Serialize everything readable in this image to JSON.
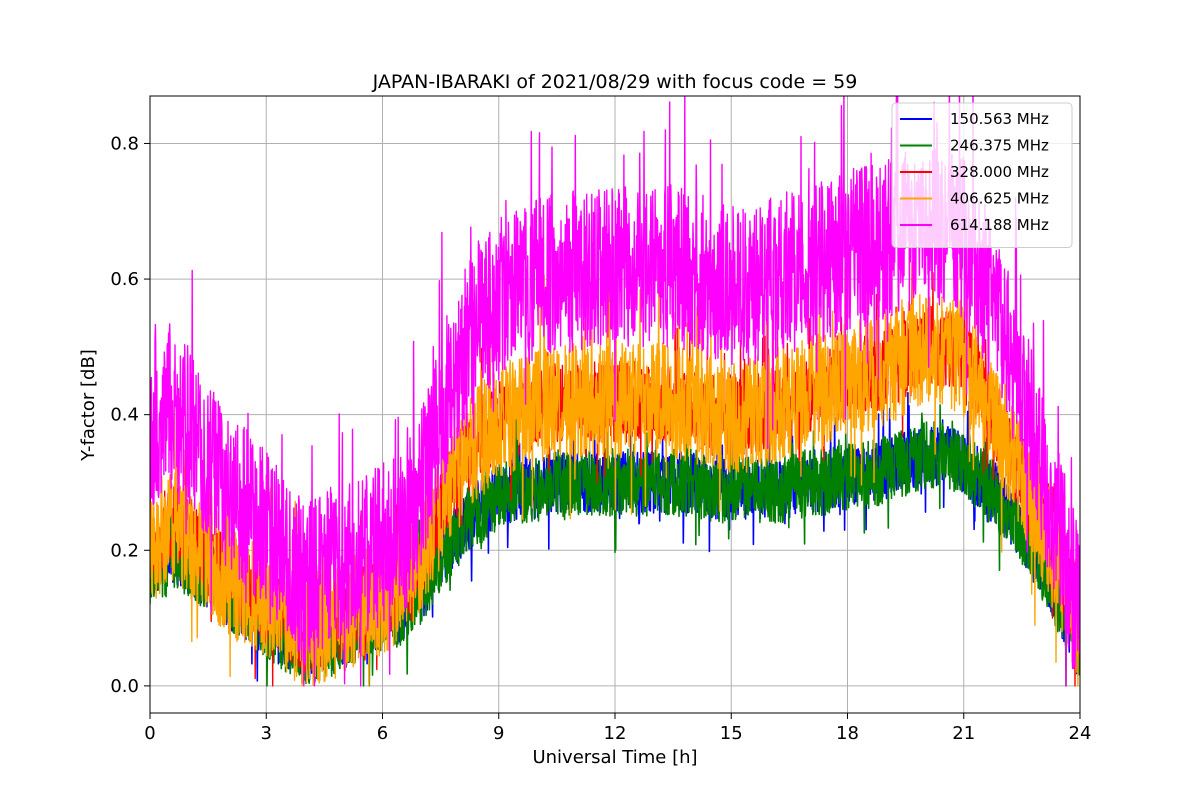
{
  "chart_data": {
    "type": "line",
    "title": "JAPAN-IBARAKI of 2021/08/29 with focus code = 59",
    "xlabel": "Universal Time [h]",
    "ylabel": "Y-factor [dB]",
    "xlim": [
      0,
      24
    ],
    "ylim": [
      -0.04,
      0.87
    ],
    "xticks": [
      0,
      3,
      6,
      9,
      12,
      15,
      18,
      21,
      24
    ],
    "yticks": [
      0.0,
      0.2,
      0.4,
      0.6,
      0.8
    ],
    "ytick_labels": [
      "0.0",
      "0.2",
      "0.4",
      "0.6",
      "0.8"
    ],
    "grid": true,
    "legend_position": "top-right",
    "x": [
      0,
      0.5,
      1,
      1.5,
      2,
      2.5,
      3,
      3.5,
      4,
      4.5,
      5,
      5.5,
      6,
      6.5,
      7,
      7.5,
      8,
      8.5,
      9,
      9.5,
      10,
      10.5,
      11,
      11.5,
      12,
      12.5,
      13,
      13.5,
      14,
      14.5,
      15,
      15.5,
      16,
      16.5,
      17,
      17.5,
      18,
      18.5,
      19,
      19.5,
      20,
      20.5,
      21,
      21.5,
      22,
      22.5,
      23,
      23.5,
      24
    ],
    "series": [
      {
        "name": "150.563 MHz",
        "color": "#0000ff",
        "values": [
          0.17,
          0.2,
          0.18,
          0.16,
          0.13,
          0.11,
          0.09,
          0.07,
          0.05,
          0.06,
          0.07,
          0.09,
          0.1,
          0.11,
          0.14,
          0.19,
          0.23,
          0.26,
          0.28,
          0.29,
          0.29,
          0.3,
          0.3,
          0.3,
          0.3,
          0.3,
          0.3,
          0.3,
          0.3,
          0.29,
          0.29,
          0.29,
          0.29,
          0.29,
          0.3,
          0.3,
          0.31,
          0.31,
          0.32,
          0.33,
          0.34,
          0.34,
          0.33,
          0.3,
          0.27,
          0.23,
          0.18,
          0.12,
          0.05
        ]
      },
      {
        "name": "246.375 MHz",
        "color": "#008000",
        "values": [
          0.17,
          0.2,
          0.18,
          0.16,
          0.13,
          0.11,
          0.09,
          0.07,
          0.05,
          0.06,
          0.07,
          0.09,
          0.1,
          0.11,
          0.14,
          0.19,
          0.23,
          0.26,
          0.28,
          0.29,
          0.29,
          0.3,
          0.3,
          0.3,
          0.3,
          0.3,
          0.3,
          0.3,
          0.3,
          0.29,
          0.29,
          0.29,
          0.29,
          0.29,
          0.3,
          0.3,
          0.31,
          0.31,
          0.32,
          0.33,
          0.34,
          0.34,
          0.33,
          0.3,
          0.27,
          0.23,
          0.18,
          0.12,
          0.05
        ]
      },
      {
        "name": "328.000 MHz",
        "color": "#ff0000",
        "values": [
          0.2,
          0.24,
          0.22,
          0.19,
          0.16,
          0.14,
          0.12,
          0.1,
          0.08,
          0.09,
          0.1,
          0.12,
          0.13,
          0.15,
          0.19,
          0.26,
          0.32,
          0.36,
          0.39,
          0.4,
          0.41,
          0.42,
          0.42,
          0.42,
          0.42,
          0.42,
          0.42,
          0.42,
          0.41,
          0.4,
          0.4,
          0.4,
          0.41,
          0.42,
          0.43,
          0.44,
          0.45,
          0.46,
          0.47,
          0.48,
          0.5,
          0.5,
          0.48,
          0.43,
          0.37,
          0.31,
          0.24,
          0.17,
          0.08
        ]
      },
      {
        "name": "406.625 MHz",
        "color": "#ffa500",
        "values": [
          0.2,
          0.24,
          0.22,
          0.19,
          0.16,
          0.14,
          0.12,
          0.1,
          0.08,
          0.09,
          0.1,
          0.12,
          0.13,
          0.15,
          0.19,
          0.26,
          0.32,
          0.36,
          0.39,
          0.4,
          0.41,
          0.42,
          0.42,
          0.42,
          0.42,
          0.42,
          0.42,
          0.42,
          0.41,
          0.4,
          0.4,
          0.4,
          0.41,
          0.42,
          0.43,
          0.44,
          0.45,
          0.46,
          0.47,
          0.48,
          0.5,
          0.5,
          0.48,
          0.43,
          0.37,
          0.31,
          0.24,
          0.17,
          0.08
        ]
      },
      {
        "name": "614.188 MHz",
        "color": "#ff00ff",
        "values": [
          0.38,
          0.42,
          0.38,
          0.33,
          0.29,
          0.26,
          0.23,
          0.19,
          0.15,
          0.17,
          0.18,
          0.19,
          0.21,
          0.22,
          0.29,
          0.4,
          0.48,
          0.54,
          0.57,
          0.59,
          0.6,
          0.61,
          0.61,
          0.62,
          0.62,
          0.62,
          0.62,
          0.62,
          0.61,
          0.6,
          0.59,
          0.59,
          0.6,
          0.61,
          0.62,
          0.63,
          0.64,
          0.65,
          0.66,
          0.67,
          0.68,
          0.68,
          0.66,
          0.6,
          0.52,
          0.43,
          0.33,
          0.22,
          0.1
        ]
      }
    ]
  }
}
